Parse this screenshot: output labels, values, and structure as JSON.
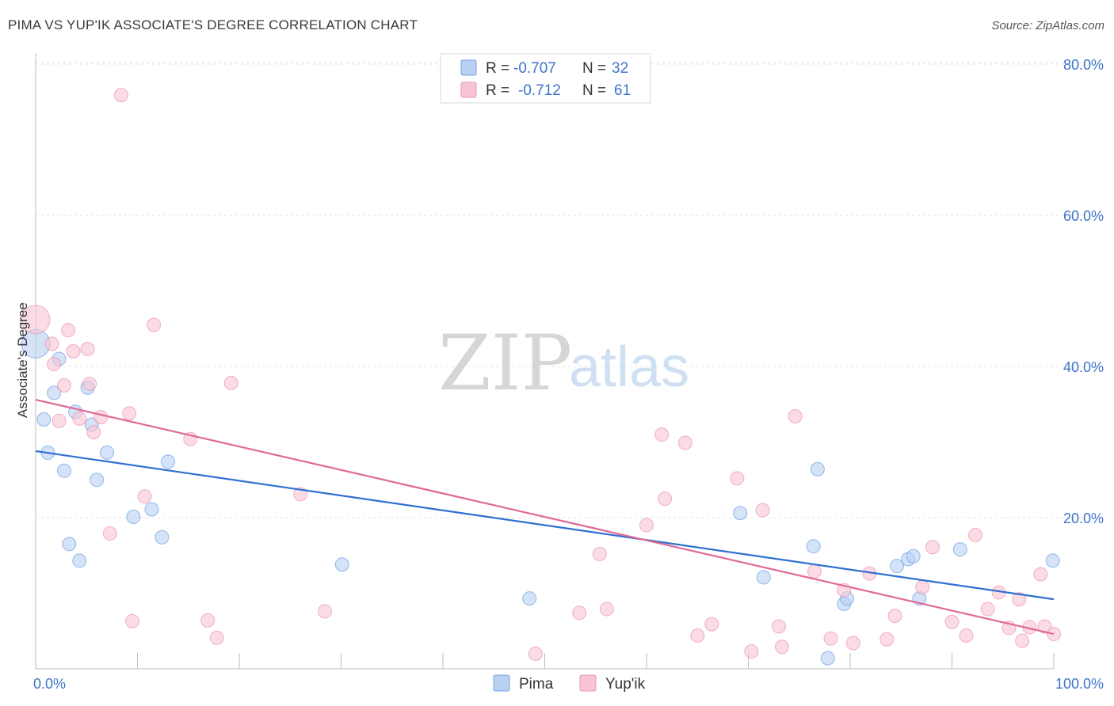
{
  "title": "PIMA VS YUP'IK ASSOCIATE'S DEGREE CORRELATION CHART",
  "source": "Source: ZipAtlas.com",
  "watermark": {
    "zip": "ZIP",
    "atlas": "atlas"
  },
  "legend": {
    "rows": [
      {
        "r_label": "R =",
        "r_value": "-0.707",
        "n_label": "N =",
        "n_value": "32"
      },
      {
        "r_label": "R =",
        "r_value": "-0.712",
        "n_label": "N =",
        "n_value": "61"
      }
    ]
  },
  "chart_data": {
    "type": "scatter",
    "title": "PIMA VS YUP'IK ASSOCIATE'S DEGREE CORRELATION CHART",
    "xlabel": "",
    "ylabel": "Associate's Degree",
    "xlim": [
      0,
      100
    ],
    "ylim": [
      0,
      85
    ],
    "x_tick_labels": [
      "0.0%",
      "100.0%"
    ],
    "y_ticks": [
      20,
      40,
      60,
      80
    ],
    "y_tick_labels": [
      "20.0%",
      "40.0%",
      "60.0%",
      "80.0%"
    ],
    "grid": true,
    "legend_position": "top-center",
    "colors": {
      "pima": "#4a86d8",
      "yupik": "#e8799c",
      "pima_fill": "#b8d1f3",
      "yupik_fill": "#f8c4d3"
    },
    "series": [
      {
        "name": "Pima",
        "trend": {
          "x": [
            0,
            100
          ],
          "y": [
            28.8,
            9.2
          ]
        },
        "points": [
          {
            "x": 0.0,
            "y": 43.0,
            "big": true
          },
          {
            "x": 0.8,
            "y": 33.0
          },
          {
            "x": 1.2,
            "y": 28.6
          },
          {
            "x": 1.8,
            "y": 36.5
          },
          {
            "x": 2.3,
            "y": 41.0
          },
          {
            "x": 2.8,
            "y": 26.2
          },
          {
            "x": 3.3,
            "y": 16.5
          },
          {
            "x": 3.9,
            "y": 34.0
          },
          {
            "x": 4.3,
            "y": 14.3
          },
          {
            "x": 5.1,
            "y": 37.2
          },
          {
            "x": 5.5,
            "y": 32.3
          },
          {
            "x": 6.0,
            "y": 25.0
          },
          {
            "x": 7.0,
            "y": 28.6
          },
          {
            "x": 9.6,
            "y": 20.1
          },
          {
            "x": 11.4,
            "y": 21.1
          },
          {
            "x": 12.4,
            "y": 17.4
          },
          {
            "x": 13.0,
            "y": 27.4
          },
          {
            "x": 30.1,
            "y": 13.8
          },
          {
            "x": 48.5,
            "y": 9.3
          },
          {
            "x": 69.2,
            "y": 20.6
          },
          {
            "x": 71.5,
            "y": 12.1
          },
          {
            "x": 76.4,
            "y": 16.2
          },
          {
            "x": 76.8,
            "y": 26.4
          },
          {
            "x": 77.8,
            "y": 1.4
          },
          {
            "x": 79.4,
            "y": 8.6
          },
          {
            "x": 79.7,
            "y": 9.3
          },
          {
            "x": 84.6,
            "y": 13.6
          },
          {
            "x": 85.7,
            "y": 14.5
          },
          {
            "x": 86.2,
            "y": 14.9
          },
          {
            "x": 86.8,
            "y": 9.3
          },
          {
            "x": 90.8,
            "y": 15.8
          },
          {
            "x": 99.9,
            "y": 14.3
          }
        ]
      },
      {
        "name": "Yup'ik",
        "trend": {
          "x": [
            0,
            100
          ],
          "y": [
            35.6,
            4.6
          ]
        },
        "points": [
          {
            "x": 0.0,
            "y": 46.2,
            "big": true
          },
          {
            "x": 1.6,
            "y": 43.0
          },
          {
            "x": 1.8,
            "y": 40.3
          },
          {
            "x": 2.3,
            "y": 32.8
          },
          {
            "x": 2.8,
            "y": 37.5
          },
          {
            "x": 3.2,
            "y": 44.8
          },
          {
            "x": 3.7,
            "y": 42.0
          },
          {
            "x": 4.3,
            "y": 33.1
          },
          {
            "x": 5.1,
            "y": 42.3
          },
          {
            "x": 5.3,
            "y": 37.7
          },
          {
            "x": 5.7,
            "y": 31.3
          },
          {
            "x": 6.4,
            "y": 33.3
          },
          {
            "x": 7.3,
            "y": 17.9
          },
          {
            "x": 8.4,
            "y": 75.9
          },
          {
            "x": 9.2,
            "y": 33.8
          },
          {
            "x": 9.5,
            "y": 6.3
          },
          {
            "x": 10.7,
            "y": 22.8
          },
          {
            "x": 11.6,
            "y": 45.5
          },
          {
            "x": 15.2,
            "y": 30.4
          },
          {
            "x": 16.9,
            "y": 6.4
          },
          {
            "x": 17.8,
            "y": 4.1
          },
          {
            "x": 19.2,
            "y": 37.8
          },
          {
            "x": 26.0,
            "y": 23.1
          },
          {
            "x": 28.4,
            "y": 7.6
          },
          {
            "x": 49.1,
            "y": 2.0
          },
          {
            "x": 53.4,
            "y": 7.4
          },
          {
            "x": 55.4,
            "y": 15.2
          },
          {
            "x": 56.1,
            "y": 7.9
          },
          {
            "x": 60.0,
            "y": 19.0
          },
          {
            "x": 61.5,
            "y": 31.0
          },
          {
            "x": 61.8,
            "y": 22.5
          },
          {
            "x": 63.8,
            "y": 29.9
          },
          {
            "x": 65.0,
            "y": 4.4
          },
          {
            "x": 66.4,
            "y": 5.9
          },
          {
            "x": 68.9,
            "y": 25.2
          },
          {
            "x": 70.3,
            "y": 2.3
          },
          {
            "x": 71.4,
            "y": 21.0
          },
          {
            "x": 73.0,
            "y": 5.6
          },
          {
            "x": 73.3,
            "y": 2.9
          },
          {
            "x": 74.6,
            "y": 33.4
          },
          {
            "x": 76.5,
            "y": 12.9
          },
          {
            "x": 78.1,
            "y": 4.0
          },
          {
            "x": 79.4,
            "y": 10.4
          },
          {
            "x": 80.3,
            "y": 3.4
          },
          {
            "x": 81.9,
            "y": 12.6
          },
          {
            "x": 83.6,
            "y": 3.9
          },
          {
            "x": 84.4,
            "y": 7.0
          },
          {
            "x": 87.1,
            "y": 10.8
          },
          {
            "x": 88.1,
            "y": 16.1
          },
          {
            "x": 90.0,
            "y": 6.2
          },
          {
            "x": 91.4,
            "y": 4.4
          },
          {
            "x": 92.3,
            "y": 17.7
          },
          {
            "x": 93.5,
            "y": 7.9
          },
          {
            "x": 94.6,
            "y": 10.1
          },
          {
            "x": 95.6,
            "y": 5.4
          },
          {
            "x": 96.6,
            "y": 9.2
          },
          {
            "x": 96.9,
            "y": 3.7
          },
          {
            "x": 97.6,
            "y": 5.5
          },
          {
            "x": 98.7,
            "y": 12.5
          },
          {
            "x": 99.1,
            "y": 5.6
          },
          {
            "x": 100.0,
            "y": 4.6
          }
        ]
      }
    ]
  }
}
